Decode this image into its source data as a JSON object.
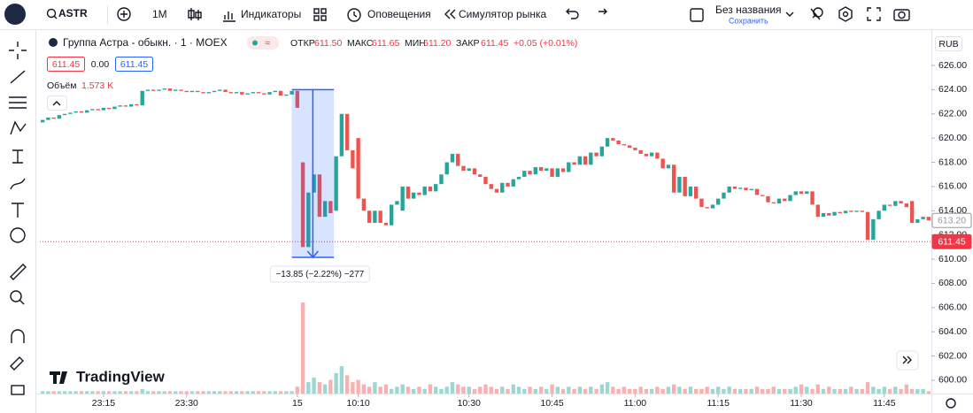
{
  "toolbar": {
    "symbol": "ASTR",
    "interval": "1М",
    "indicators": "Индикаторы",
    "alerts": "Оповещения",
    "replay": "Симулятор рынка",
    "layout_name": "Без названия",
    "save": "Сохранить"
  },
  "legend": {
    "instrument": "Группа Астра - обыкн. · 1 · MOEX",
    "open_label": "ОТКР",
    "open": "611.50",
    "high_label": "МАКС",
    "high": "611.65",
    "low_label": "МИН",
    "low": "611.20",
    "close_label": "ЗАКР",
    "close": "611.45",
    "change": "+0.05 (+0.01%)",
    "bid": "611.45",
    "spread": "0.00",
    "ask": "611.45",
    "volume_label": "Объём",
    "volume": "1.573 K"
  },
  "currency": "RUB",
  "brand": "TradingView",
  "chart_data": {
    "type": "candlestick",
    "up_color": "#26a69a",
    "down_color": "#ef5350",
    "open": [
      621.3,
      621.5,
      621.7,
      621.6,
      621.9,
      622,
      622.1,
      622.2,
      622.1,
      622.3,
      622.4,
      622.3,
      622.5,
      622.4,
      622.6,
      622.7,
      622.6,
      622.8,
      622.7,
      623.9,
      624,
      623.9,
      624,
      624.1,
      623.9,
      624,
      623.9,
      623.8,
      623.9,
      623.8,
      623.7,
      623.8,
      623.9,
      624,
      623.8,
      623.7,
      623.8,
      623.6,
      623.7,
      623.8,
      623.7,
      623.6,
      623.8,
      623.9,
      623.5,
      623.6,
      623.9,
      618,
      611,
      615.5,
      617,
      613.5,
      614.8,
      614,
      618.5,
      622,
      619,
      620,
      615,
      614,
      613,
      614,
      613,
      612.8,
      614.5,
      614,
      616,
      615,
      615.5,
      615.3,
      616,
      615.6,
      616.2,
      617,
      618,
      618.7,
      617.7,
      617.3,
      617.5,
      617,
      616.8,
      616.2,
      615.8,
      615.5,
      616.3,
      616,
      616.6,
      616.8,
      617.3,
      617,
      617.6,
      617.3,
      617.5,
      616.8,
      617.5,
      617.2,
      618,
      617.8,
      618.5,
      617.8,
      618.8,
      618.5,
      619.3,
      620,
      619.8,
      619.5,
      619.4,
      619.2,
      619,
      618.7,
      618.5,
      618.8,
      618.3,
      617.5,
      617.8,
      615.5,
      616.8,
      615.2,
      616,
      615,
      614.3,
      614.2,
      614.5,
      615,
      615.5,
      616,
      615.8,
      615.9,
      615.7,
      615.8,
      615.3,
      615.2,
      614.7,
      614.6,
      615,
      614.8,
      615.3,
      615.6,
      615.4,
      615.6,
      614.5,
      613.5,
      613.8,
      613.6,
      613.9,
      613.8,
      614,
      613.9,
      614,
      613.9,
      611.6,
      613.3,
      614,
      614.5,
      614.4,
      614.8,
      614.6,
      614.8,
      613,
      613.3,
      613.5
    ],
    "close": [
      621.5,
      621.7,
      621.6,
      621.9,
      622,
      622.1,
      622.2,
      622.1,
      622.3,
      622.4,
      622.3,
      622.5,
      622.4,
      622.6,
      622.7,
      622.6,
      622.8,
      622.7,
      623.9,
      624,
      623.9,
      624,
      624.1,
      623.9,
      624,
      623.9,
      623.8,
      623.9,
      623.8,
      623.7,
      623.8,
      623.9,
      624,
      623.8,
      623.7,
      623.8,
      623.6,
      623.7,
      623.8,
      623.7,
      623.6,
      623.8,
      623.9,
      623.5,
      623.6,
      623.9,
      622.5,
      611,
      615.5,
      617,
      613.5,
      614.8,
      613.8,
      618.5,
      622,
      619,
      617.5,
      615,
      614,
      613,
      614,
      613,
      612.8,
      614.5,
      614.8,
      616,
      615,
      615.5,
      615.3,
      616,
      615.6,
      616.2,
      617,
      618,
      618.7,
      617.7,
      617.3,
      617.5,
      617,
      616.8,
      616.2,
      615.8,
      615.5,
      616.3,
      616,
      616.6,
      616.8,
      617.3,
      617,
      617.6,
      617.3,
      617.5,
      616.8,
      617.5,
      617.2,
      618,
      617.8,
      618.5,
      617.8,
      618.8,
      618.5,
      619.3,
      620,
      619.8,
      619.5,
      619.4,
      619.2,
      619,
      618.7,
      618.5,
      618.8,
      618.3,
      617.5,
      617.8,
      615.5,
      616.8,
      615.2,
      616,
      615,
      614.3,
      614.2,
      614.5,
      615,
      615.5,
      616,
      615.8,
      615.9,
      615.7,
      615.8,
      615.3,
      615.2,
      614.7,
      614.6,
      615,
      614.8,
      615.3,
      615.6,
      615.4,
      615.6,
      614.5,
      613.5,
      613.8,
      613.6,
      613.9,
      613.8,
      614,
      613.9,
      614,
      613.9,
      611.6,
      613.3,
      614,
      614.5,
      614.4,
      614.8,
      614.6,
      614.3,
      613,
      613.3,
      613.5,
      613.2
    ],
    "volume": [
      1,
      1,
      1,
      1,
      1,
      1,
      1,
      1,
      1,
      1,
      1,
      1,
      1,
      1,
      1,
      1,
      1,
      1,
      2,
      1,
      1,
      1,
      1,
      1,
      1,
      1,
      1,
      1,
      1,
      1,
      1,
      1,
      1,
      1,
      1,
      1,
      1,
      1,
      1,
      1,
      1,
      1,
      1,
      1,
      1,
      1,
      3,
      40,
      5,
      7,
      5,
      4,
      6,
      9,
      12,
      8,
      5,
      6,
      4,
      3,
      5,
      3,
      4,
      2,
      3,
      4,
      3,
      2,
      3,
      2,
      4,
      3,
      2,
      3,
      5,
      4,
      3,
      3,
      2,
      3,
      4,
      3,
      2,
      3,
      2,
      4,
      3,
      2,
      3,
      2,
      3,
      2,
      4,
      3,
      2,
      3,
      2,
      3,
      2,
      3,
      2,
      4,
      5,
      3,
      2,
      3,
      2,
      2,
      3,
      2,
      2,
      3,
      2,
      3,
      4,
      3,
      2,
      3,
      2,
      2,
      3,
      2,
      3,
      2,
      3,
      2,
      2,
      2,
      2,
      3,
      2,
      2,
      3,
      2,
      2,
      2,
      3,
      4,
      3,
      2,
      4,
      2,
      3,
      2,
      2,
      2,
      3,
      2,
      2,
      5,
      3,
      2,
      3,
      2,
      3,
      2,
      4,
      2,
      2,
      2,
      1
    ],
    "xlim": [
      0,
      161
    ],
    "ylim": [
      598.9,
      628.85
    ],
    "xticks": [
      {
        "value": 11,
        "label": "23:15"
      },
      {
        "value": 26,
        "label": "23:30"
      },
      {
        "value": 46,
        "label": "15"
      },
      {
        "value": 57,
        "label": "10:10"
      },
      {
        "value": 77,
        "label": "10:30"
      },
      {
        "value": 92,
        "label": "10:45"
      },
      {
        "value": 107,
        "label": "11:00"
      },
      {
        "value": 122,
        "label": "11:15"
      },
      {
        "value": 137,
        "label": "11:30"
      },
      {
        "value": 152,
        "label": "11:45"
      }
    ],
    "yticks": [
      {
        "value": 600,
        "label": "600.00"
      },
      {
        "value": 602,
        "label": "602.00"
      },
      {
        "value": 604,
        "label": "604.00"
      },
      {
        "value": 606,
        "label": "606.00"
      },
      {
        "value": 608,
        "label": "608.00"
      },
      {
        "value": 610,
        "label": "610.00"
      },
      {
        "value": 612,
        "label": "612.00"
      },
      {
        "value": 614,
        "label": "614.00"
      },
      {
        "value": 616,
        "label": "616.00"
      },
      {
        "value": 618,
        "label": "618.00"
      },
      {
        "value": 620,
        "label": "620.00"
      },
      {
        "value": 622,
        "label": "622.00"
      },
      {
        "value": 624,
        "label": "624.00"
      },
      {
        "value": 626,
        "label": "626.00"
      }
    ],
    "measure": {
      "x": [
        45,
        52.6
      ],
      "y": [
        624,
        610.15
      ],
      "label": "−13.85 (−2.22%) −277"
    },
    "price_labels": [
      {
        "value": 613.2,
        "label": "613.20",
        "color": "#9598a1"
      },
      {
        "value": 611.45,
        "label": "611.45",
        "color": "#f23645"
      }
    ]
  }
}
